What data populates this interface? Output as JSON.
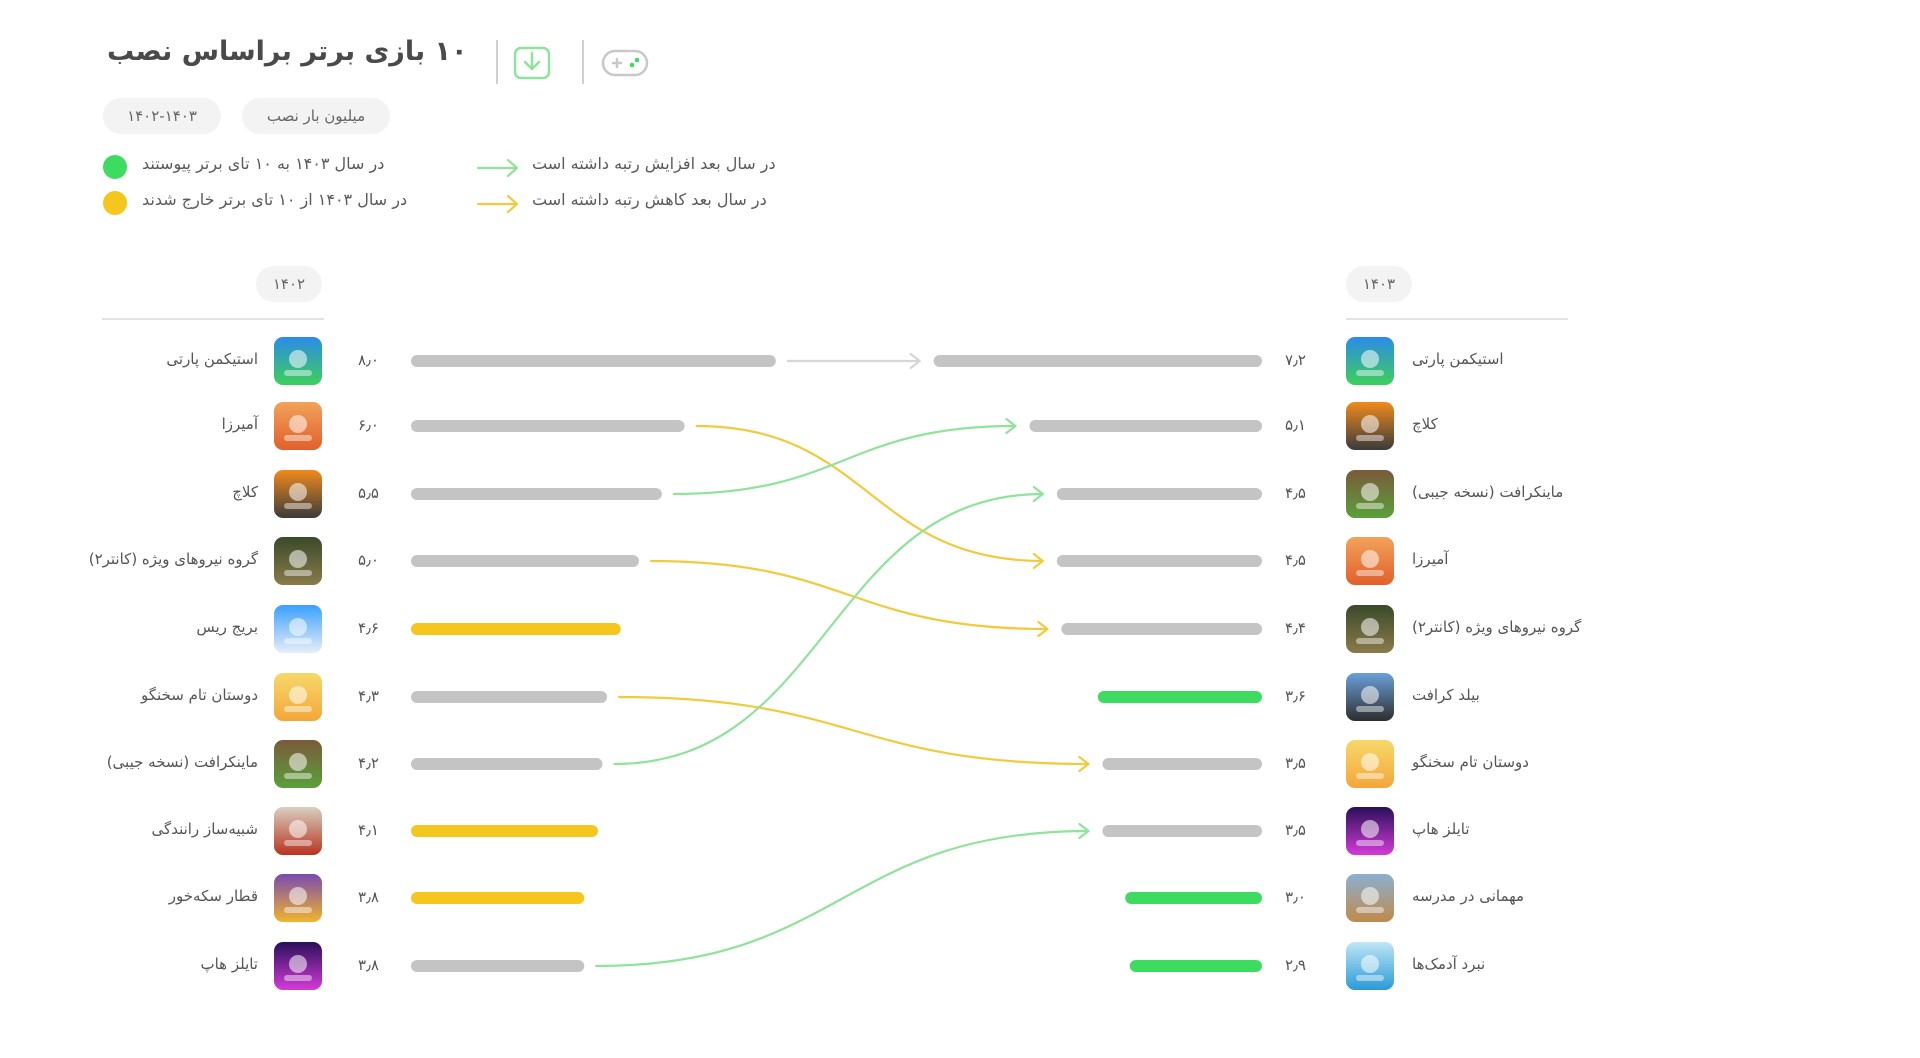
{
  "header": {
    "title": "۱۰ بازی برتر براساس نصب",
    "unit_label": "میلیون بار نصب",
    "period_label": "۱۴۰۲-۱۴۰۳"
  },
  "legend": {
    "joined": "در سال ۱۴۰۳ به ۱۰ تای برتر پیوستند",
    "left": "در سال ۱۴۰۳ از ۱۰ تای برتر خارج شدند",
    "rank_up": "در سال بعد افزایش رتبه داشته است",
    "rank_down": "در سال بعد کاهش رتبه داشته است"
  },
  "colors": {
    "gray": "#c4c4c4",
    "green": "#3ddc61",
    "yellow": "#f5c61d",
    "up_line": "#8fe39a",
    "down_line": "#f2cb3c",
    "same_line": "#d6d6d6"
  },
  "chart_data": {
    "type": "bar",
    "unit": "میلیون بار نصب",
    "years": {
      "left": "۱۴۰۲",
      "right": "۱۴۰۳"
    },
    "left": [
      {
        "name": "استیکمن پارتی",
        "value": 8.0,
        "label": "۸٫۰",
        "icon": "stickman-party-icon",
        "status": "same"
      },
      {
        "name": "آمیرزا",
        "value": 6.0,
        "label": "۶٫۰",
        "icon": "amirza-icon",
        "status": "down"
      },
      {
        "name": "کلاچ",
        "value": 5.5,
        "label": "۵٫۵",
        "icon": "clutch-icon",
        "status": "up"
      },
      {
        "name": "گروه نیروهای ویژه (کانتر۲)",
        "value": 5.0,
        "label": "۵٫۰",
        "icon": "special-forces-icon",
        "status": "down"
      },
      {
        "name": "بریج ریس",
        "value": 4.6,
        "label": "۴٫۶",
        "icon": "bridge-race-icon",
        "status": "left"
      },
      {
        "name": "دوستان تام سخنگو",
        "value": 4.3,
        "label": "۴٫۳",
        "icon": "talking-tom-icon",
        "status": "down"
      },
      {
        "name": "ماینکرافت (نسخه جیبی)",
        "value": 4.2,
        "label": "۴٫۲",
        "icon": "minecraft-icon",
        "status": "up"
      },
      {
        "name": "شبیه‌ساز رانندگی",
        "value": 4.1,
        "label": "۴٫۱",
        "icon": "driving-sim-icon",
        "status": "left"
      },
      {
        "name": "قطار سکه‌خور",
        "value": 3.8,
        "label": "۳٫۸",
        "icon": "subway-surfers-icon",
        "status": "left"
      },
      {
        "name": "تایلز هاپ",
        "value": 3.8,
        "label": "۳٫۸",
        "icon": "tiles-hop-icon",
        "status": "up"
      }
    ],
    "right": [
      {
        "name": "استیکمن پارتی",
        "value": 7.2,
        "label": "۷٫۲",
        "icon": "stickman-party-icon",
        "status": "same"
      },
      {
        "name": "کلاچ",
        "value": 5.1,
        "label": "۵٫۱",
        "icon": "clutch-icon",
        "status": "up"
      },
      {
        "name": "ماینکرافت (نسخه جیبی)",
        "value": 4.5,
        "label": "۴٫۵",
        "icon": "minecraft-icon",
        "status": "up"
      },
      {
        "name": "آمیرزا",
        "value": 4.5,
        "label": "۴٫۵",
        "icon": "amirza-icon",
        "status": "down"
      },
      {
        "name": "گروه نیروهای ویژه (کانتر۲)",
        "value": 4.4,
        "label": "۴٫۴",
        "icon": "special-forces-icon",
        "status": "down"
      },
      {
        "name": "بیلد کرافت",
        "value": 3.6,
        "label": "۳٫۶",
        "icon": "build-craft-icon",
        "status": "new"
      },
      {
        "name": "دوستان تام سخنگو",
        "value": 3.5,
        "label": "۳٫۵",
        "icon": "talking-tom-icon",
        "status": "down"
      },
      {
        "name": "تایلز هاپ",
        "value": 3.5,
        "label": "۳٫۵",
        "icon": "tiles-hop-icon",
        "status": "up"
      },
      {
        "name": "مهمانی در مدرسه",
        "value": 3.0,
        "label": "۳٫۰",
        "icon": "school-party-icon",
        "status": "new"
      },
      {
        "name": "نبرد آدمک‌ها",
        "value": 2.9,
        "label": "۲٫۹",
        "icon": "stickman-battle-icon",
        "status": "new"
      }
    ],
    "links": [
      {
        "from": 0,
        "to": 0,
        "direction": "same"
      },
      {
        "from": 1,
        "to": 3,
        "direction": "down"
      },
      {
        "from": 2,
        "to": 1,
        "direction": "up"
      },
      {
        "from": 3,
        "to": 4,
        "direction": "down"
      },
      {
        "from": 5,
        "to": 6,
        "direction": "down"
      },
      {
        "from": 6,
        "to": 2,
        "direction": "up"
      },
      {
        "from": 9,
        "to": 7,
        "direction": "up"
      }
    ]
  }
}
